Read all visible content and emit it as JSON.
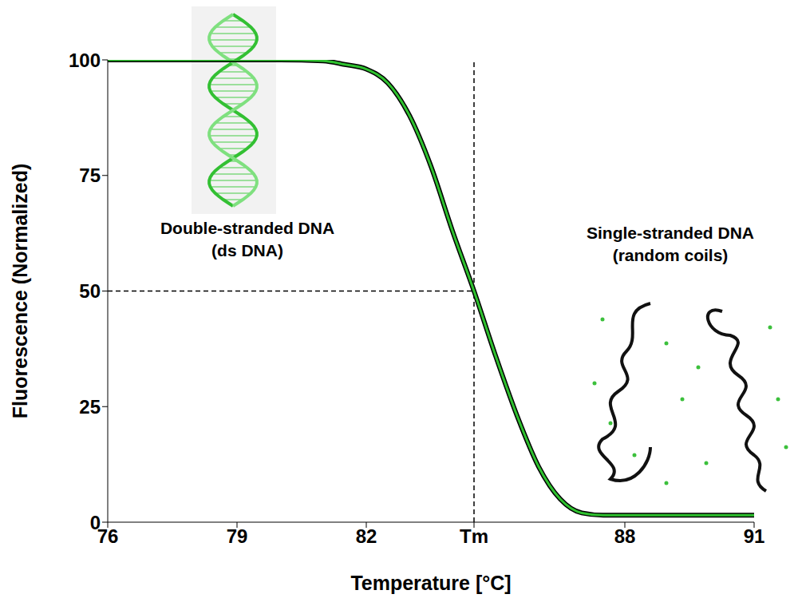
{
  "chart_data": {
    "type": "line",
    "x_label": "Temperature  [°C]",
    "y_label": "Fluorescence (Normalized)",
    "x": [
      76,
      77,
      78,
      79,
      80,
      81,
      81.5,
      82,
      82.5,
      83,
      83.5,
      84,
      84.5,
      85,
      85.5,
      86,
      86.5,
      87,
      87.5,
      88,
      89,
      90,
      91
    ],
    "values": [
      100,
      100,
      100,
      100,
      100,
      99.8,
      99,
      98,
      95,
      88,
      77,
      63,
      50,
      36,
      23,
      12,
      5,
      2,
      1.5,
      1.5,
      1.5,
      1.5,
      1.5
    ],
    "color": "#2fc12f",
    "xlim": [
      76,
      91
    ],
    "xticks": [
      76,
      79,
      82,
      {
        "value": 84.5,
        "label": "Tm"
      },
      88,
      91
    ],
    "ylim": [
      0,
      100
    ],
    "yticks": [
      0,
      25,
      50,
      75,
      100
    ],
    "grid": false,
    "markers": {
      "x": 84.5,
      "y": 50
    },
    "annotations": [
      {
        "text": "Double-stranded DNA",
        "subtext": "(ds DNA)"
      },
      {
        "text": "Single-stranded DNA",
        "subtext": "(random coils)"
      }
    ]
  }
}
